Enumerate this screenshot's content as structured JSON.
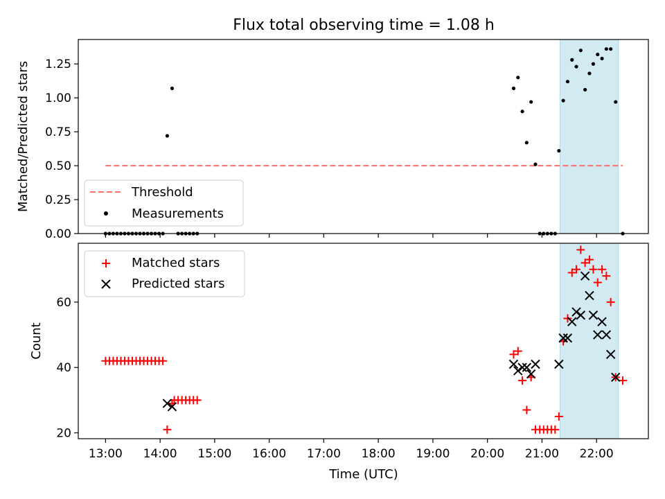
{
  "chart_data": [
    {
      "type": "scatter",
      "title": "Flux total observing time = 1.08 h",
      "ylabel": "Matched/Predicted stars",
      "xlabel": "",
      "x_unit": "hours (UTC)",
      "xlim": [
        12.5,
        22.95
      ],
      "ylim": [
        0,
        1.43
      ],
      "xticks": [
        13,
        14,
        15,
        16,
        17,
        18,
        19,
        20,
        21,
        22
      ],
      "yticks": [
        0.0,
        0.25,
        0.5,
        0.75,
        1.0,
        1.25
      ],
      "ytick_labels": [
        "0.00",
        "0.25",
        "0.50",
        "0.75",
        "1.00",
        "1.25"
      ],
      "shaded_span": [
        21.33,
        22.4
      ],
      "shaded_color": "#add8e6",
      "legend_position": "lower left",
      "threshold": {
        "name": "Threshold",
        "x": [
          13.0,
          22.48
        ],
        "y": 0.5,
        "color": "#ff6b6b",
        "style": "dashed"
      },
      "series": [
        {
          "name": "Measurements",
          "marker": "dot",
          "color": "#000000",
          "points": [
            [
              13.0,
              0
            ],
            [
              13.07,
              0
            ],
            [
              13.14,
              0
            ],
            [
              13.21,
              0
            ],
            [
              13.28,
              0
            ],
            [
              13.35,
              0
            ],
            [
              13.42,
              0
            ],
            [
              13.49,
              0
            ],
            [
              13.56,
              0
            ],
            [
              13.63,
              0
            ],
            [
              13.7,
              0
            ],
            [
              13.77,
              0
            ],
            [
              13.84,
              0
            ],
            [
              13.91,
              0
            ],
            [
              13.98,
              0
            ],
            [
              14.05,
              0
            ],
            [
              14.13,
              0.72
            ],
            [
              14.22,
              1.07
            ],
            [
              14.33,
              0
            ],
            [
              14.4,
              0
            ],
            [
              14.47,
              0
            ],
            [
              14.54,
              0
            ],
            [
              14.61,
              0
            ],
            [
              14.68,
              0
            ],
            [
              20.48,
              1.07
            ],
            [
              20.56,
              1.15
            ],
            [
              20.64,
              0.9
            ],
            [
              20.72,
              0.67
            ],
            [
              20.8,
              0.97
            ],
            [
              20.88,
              0.51
            ],
            [
              20.96,
              0
            ],
            [
              21.03,
              0
            ],
            [
              21.1,
              0
            ],
            [
              21.17,
              0
            ],
            [
              21.24,
              0
            ],
            [
              21.31,
              0.61
            ],
            [
              21.39,
              0.98
            ],
            [
              21.47,
              1.12
            ],
            [
              21.55,
              1.28
            ],
            [
              21.63,
              1.23
            ],
            [
              21.71,
              1.35
            ],
            [
              21.79,
              1.06
            ],
            [
              21.87,
              1.18
            ],
            [
              21.94,
              1.25
            ],
            [
              22.02,
              1.32
            ],
            [
              22.1,
              1.29
            ],
            [
              22.18,
              1.36
            ],
            [
              22.26,
              1.36
            ],
            [
              22.35,
              0.97
            ],
            [
              22.48,
              0
            ]
          ]
        }
      ]
    },
    {
      "type": "scatter",
      "title": "",
      "xlabel": "Time (UTC)",
      "ylabel": "Count",
      "x_unit": "hours (UTC)",
      "xlim": [
        12.5,
        22.95
      ],
      "ylim": [
        18.2,
        78
      ],
      "xticks": [
        13,
        14,
        15,
        16,
        17,
        18,
        19,
        20,
        21,
        22
      ],
      "xtick_labels": [
        "13:00",
        "14:00",
        "15:00",
        "16:00",
        "17:00",
        "18:00",
        "19:00",
        "20:00",
        "21:00",
        "22:00"
      ],
      "yticks": [
        20,
        40,
        60
      ],
      "ytick_labels": [
        "20",
        "40",
        "60"
      ],
      "shaded_span": [
        21.33,
        22.4
      ],
      "shaded_color": "#add8e6",
      "legend_position": "upper left",
      "series": [
        {
          "name": "Matched stars",
          "marker": "plus",
          "color": "#ff0000",
          "points": [
            [
              13.0,
              42
            ],
            [
              13.07,
              42
            ],
            [
              13.14,
              42
            ],
            [
              13.21,
              42
            ],
            [
              13.28,
              42
            ],
            [
              13.35,
              42
            ],
            [
              13.42,
              42
            ],
            [
              13.49,
              42
            ],
            [
              13.56,
              42
            ],
            [
              13.63,
              42
            ],
            [
              13.7,
              42
            ],
            [
              13.77,
              42
            ],
            [
              13.84,
              42
            ],
            [
              13.91,
              42
            ],
            [
              13.98,
              42
            ],
            [
              14.05,
              42
            ],
            [
              14.13,
              21
            ],
            [
              14.22,
              29
            ],
            [
              14.26,
              30
            ],
            [
              14.33,
              30
            ],
            [
              14.4,
              30
            ],
            [
              14.47,
              30
            ],
            [
              14.54,
              30
            ],
            [
              14.61,
              30
            ],
            [
              14.68,
              30
            ],
            [
              20.48,
              44
            ],
            [
              20.56,
              45
            ],
            [
              20.64,
              36
            ],
            [
              20.72,
              27
            ],
            [
              20.8,
              37
            ],
            [
              20.88,
              21
            ],
            [
              20.96,
              21
            ],
            [
              21.03,
              21
            ],
            [
              21.1,
              21
            ],
            [
              21.17,
              21
            ],
            [
              21.24,
              21
            ],
            [
              21.31,
              25
            ],
            [
              21.39,
              48
            ],
            [
              21.47,
              55
            ],
            [
              21.55,
              69
            ],
            [
              21.63,
              70
            ],
            [
              21.71,
              76
            ],
            [
              21.79,
              72
            ],
            [
              21.87,
              73
            ],
            [
              21.94,
              70
            ],
            [
              22.02,
              66
            ],
            [
              22.1,
              70
            ],
            [
              22.18,
              68
            ],
            [
              22.26,
              60
            ],
            [
              22.35,
              37
            ],
            [
              22.48,
              36
            ]
          ]
        },
        {
          "name": "Predicted stars",
          "marker": "x",
          "color": "#000000",
          "points": [
            [
              14.13,
              29
            ],
            [
              14.22,
              28
            ],
            [
              20.48,
              41
            ],
            [
              20.56,
              39
            ],
            [
              20.64,
              40
            ],
            [
              20.72,
              40
            ],
            [
              20.8,
              38
            ],
            [
              20.88,
              41
            ],
            [
              21.31,
              41
            ],
            [
              21.39,
              49
            ],
            [
              21.47,
              49
            ],
            [
              21.55,
              54
            ],
            [
              21.63,
              57
            ],
            [
              21.71,
              56
            ],
            [
              21.79,
              68
            ],
            [
              21.87,
              62
            ],
            [
              21.94,
              56
            ],
            [
              22.02,
              50
            ],
            [
              22.1,
              54
            ],
            [
              22.18,
              50
            ],
            [
              22.26,
              44
            ],
            [
              22.35,
              37
            ]
          ]
        }
      ]
    }
  ]
}
